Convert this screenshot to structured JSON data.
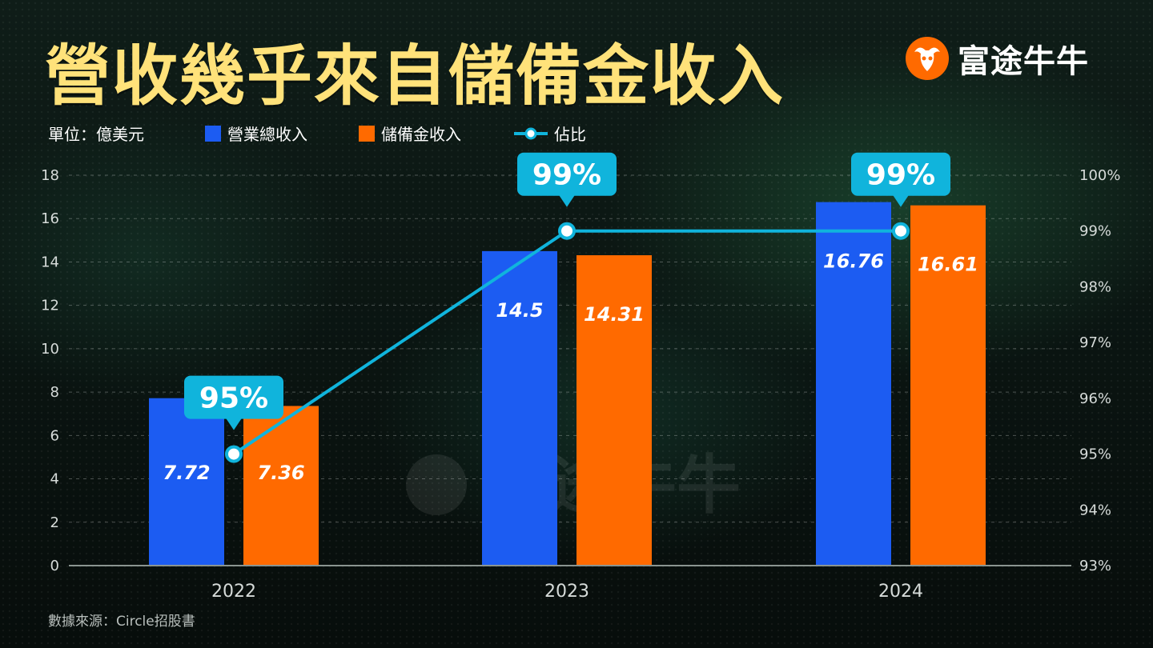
{
  "title": "營收幾乎來自儲備金收入",
  "brand": {
    "name": "富途牛牛",
    "logo": "futu-bull-logo"
  },
  "unit": "單位：億美元",
  "legend": {
    "total": "營業總收入",
    "reserve": "儲備金收入",
    "share": "佔比"
  },
  "source": "數據來源：Circle招股書",
  "colors": {
    "total": "#1c5cf2",
    "reserve": "#ff6a00",
    "line": "#10b4dc",
    "title": "#ffe27a"
  },
  "chart_data": {
    "type": "bar",
    "categories": [
      "2022",
      "2023",
      "2024"
    ],
    "series": [
      {
        "name": "營業總收入",
        "values": [
          7.72,
          14.5,
          16.76
        ],
        "labels": [
          "7.72",
          "14.5",
          "16.76"
        ]
      },
      {
        "name": "儲備金收入",
        "values": [
          7.36,
          14.31,
          16.61
        ],
        "labels": [
          "7.36",
          "14.31",
          "16.61"
        ]
      }
    ],
    "line_series": {
      "name": "佔比",
      "values": [
        95,
        99,
        99
      ],
      "labels": [
        "95%",
        "99%",
        "99%"
      ],
      "axis": "right"
    },
    "ylim": [
      0,
      18
    ],
    "yticks": [
      "0",
      "2",
      "4",
      "6",
      "8",
      "10",
      "12",
      "14",
      "16",
      "18"
    ],
    "y2lim": [
      93,
      100
    ],
    "y2ticks": [
      "93%",
      "94%",
      "95%",
      "96%",
      "97%",
      "98%",
      "99%",
      "100%"
    ],
    "grid": true
  }
}
